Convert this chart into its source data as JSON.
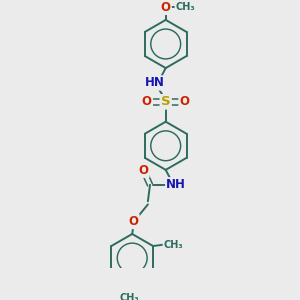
{
  "bg_color": "#ebebeb",
  "bond_color": "#2d6b5e",
  "atom_colors": {
    "N": "#1515b0",
    "O": "#cc2200",
    "S": "#b8a000",
    "C": "#2d6b5e"
  },
  "font_size": 8.5,
  "bond_width": 1.4,
  "fig_w": 3.0,
  "fig_h": 3.0,
  "dpi": 100,
  "xlim": [
    0.1,
    0.9
  ],
  "ylim": [
    0.0,
    1.0
  ]
}
